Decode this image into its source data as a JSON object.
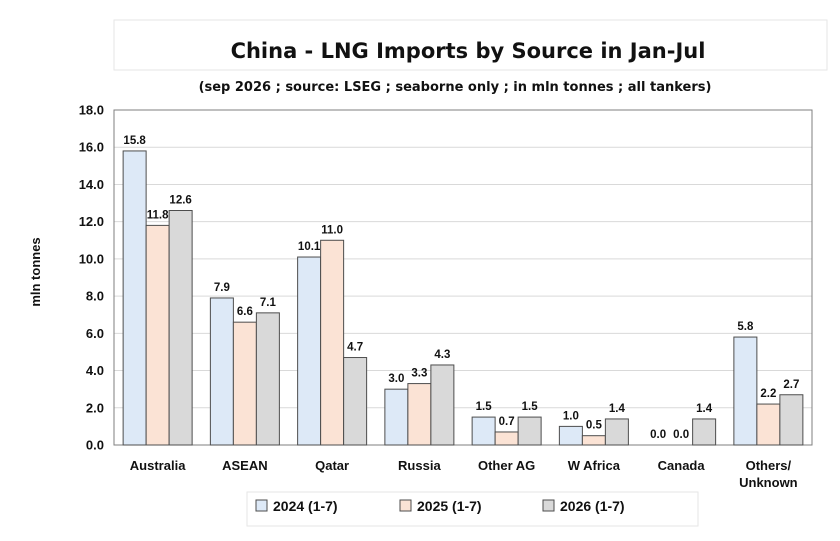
{
  "chart_data": {
    "type": "bar",
    "title": "China - LNG Imports by Source in Jan-Jul",
    "subtitle": "(sep 2026 ; source: LSEG ; seaborne only ; in mln tonnes ; all tankers)",
    "ylabel": "mln tonnes",
    "xlabel": "",
    "ylim": [
      0,
      18
    ],
    "yticks": [
      "0.0",
      "2.0",
      "4.0",
      "6.0",
      "8.0",
      "10.0",
      "12.0",
      "14.0",
      "16.0",
      "18.0"
    ],
    "grid": true,
    "legend_position": "bottom",
    "categories": [
      "Australia",
      "ASEAN",
      "Qatar",
      "Russia",
      "Other AG",
      "W Africa",
      "Canada",
      "Others/ Unknown"
    ],
    "series": [
      {
        "name": "2024 (1-7)",
        "color": "#dde9f7",
        "values": [
          15.8,
          7.9,
          10.1,
          3.0,
          1.5,
          1.0,
          0.0,
          5.8
        ]
      },
      {
        "name": "2025 (1-7)",
        "color": "#fbe3d5",
        "values": [
          11.8,
          6.6,
          11.0,
          3.3,
          0.7,
          0.5,
          0.0,
          2.2
        ]
      },
      {
        "name": "2026 (1-7)",
        "color": "#d9d9d9",
        "values": [
          12.6,
          7.1,
          4.7,
          4.3,
          1.5,
          1.4,
          1.4,
          2.7
        ]
      }
    ]
  }
}
